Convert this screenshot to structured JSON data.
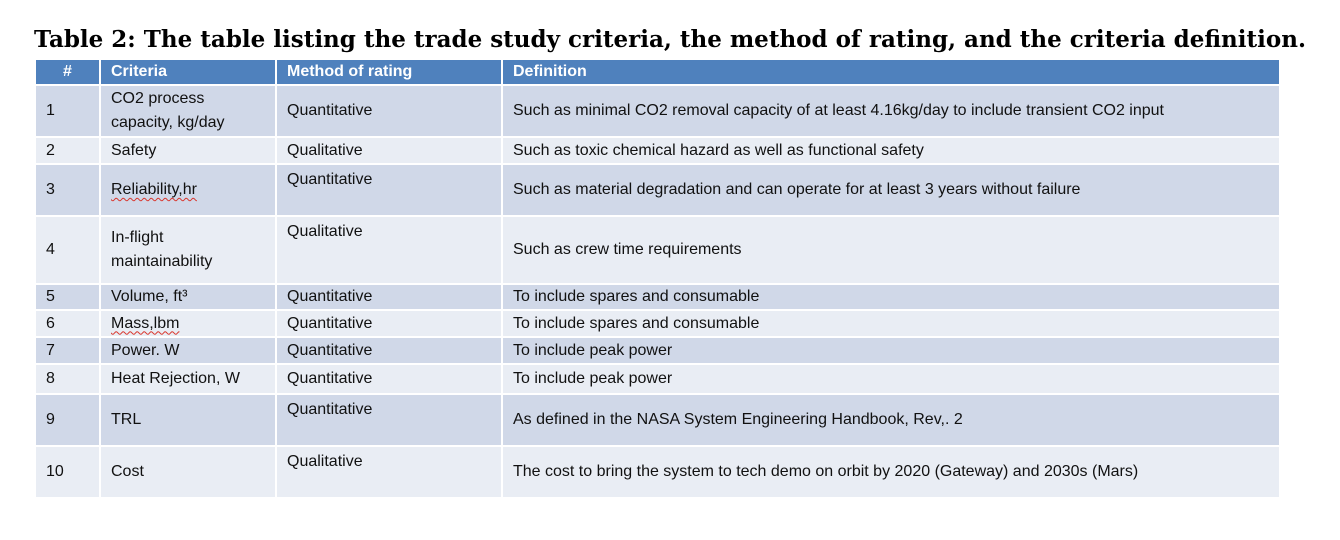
{
  "caption": "Table 2: The table listing the trade study criteria, the method of rating, and the criteria definition.",
  "headers": {
    "num": "#",
    "criteria": "Criteria",
    "method": "Method of rating",
    "definition": "Definition"
  },
  "rows": [
    {
      "num": "1",
      "criteria": "CO2 process capacity, kg/day",
      "method": "Quantitative",
      "definition": "Such as minimal CO2 removal capacity of at least 4.16kg/day to include transient CO2 input"
    },
    {
      "num": "2",
      "criteria": "Safety",
      "method": "Qualitative",
      "definition": "Such as toxic chemical hazard as well as functional safety"
    },
    {
      "num": "3",
      "criteria": "Reliability,hr",
      "method": "Quantitative",
      "definition": "Such as material degradation and can operate for at least 3 years without failure"
    },
    {
      "num": "4",
      "criteria": "In-flight maintainability",
      "method": "Qualitative",
      "definition": "Such as crew time requirements"
    },
    {
      "num": "5",
      "criteria": "Volume, ft³",
      "method": "Quantitative",
      "definition": "To include spares and consumable"
    },
    {
      "num": "6",
      "criteria": "Mass,lbm",
      "method": "Quantitative",
      "definition": "To include spares and consumable"
    },
    {
      "num": "7",
      "criteria": "Power. W",
      "method": "Quantitative",
      "definition": "To include peak power"
    },
    {
      "num": "8",
      "criteria": "Heat Rejection, W",
      "method": "Quantitative",
      "definition": "To include peak power"
    },
    {
      "num": "9",
      "criteria": "TRL",
      "method": "Quantitative",
      "definition": "As defined in the NASA System Engineering Handbook, Rev,. 2"
    },
    {
      "num": "10",
      "criteria": "Cost",
      "method": "Qualitative",
      "definition": "The cost to bring the system to tech demo on orbit by 2020 (Gateway) and 2030s (Mars)"
    }
  ],
  "colors": {
    "header_bg": "#4f81bd",
    "row_dark": "#d0d8e8",
    "row_light": "#e9edf4"
  }
}
